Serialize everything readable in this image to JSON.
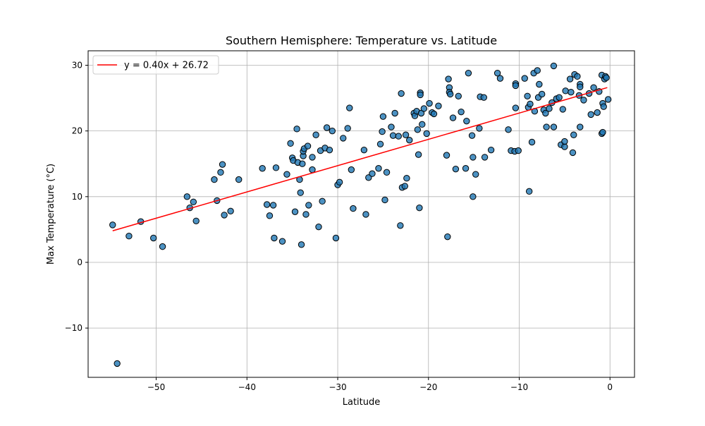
{
  "chart_data": {
    "type": "scatter",
    "title": "Southern Hemisphere: Temperature vs. Latitude",
    "xlabel": "Latitude",
    "ylabel": "Max Temperature (°C)",
    "xlim": [
      -57.5,
      2.7
    ],
    "ylim": [
      -17.5,
      32.2
    ],
    "xticks": [
      -50,
      -40,
      -30,
      -20,
      -10,
      0
    ],
    "yticks": [
      -10,
      0,
      10,
      20,
      30
    ],
    "xtick_labels": [
      "−50",
      "−40",
      "−30",
      "−20",
      "−10",
      "0"
    ],
    "ytick_labels": [
      "−10",
      "0",
      "10",
      "20",
      "30"
    ],
    "grid": true,
    "legend": {
      "position": "top-left",
      "entries": [
        "y = 0.40x + 26.72"
      ]
    },
    "colors": {
      "points": "#1f77b4",
      "point_edge": "#000000",
      "regression": "#ff0000"
    },
    "regression": {
      "slope": 0.4,
      "intercept": 26.72,
      "x_range": [
        -54.8,
        -0.3
      ]
    },
    "series": [
      {
        "points": [
          [
            -54.8,
            5.7
          ],
          [
            -54.3,
            -15.4
          ],
          [
            -53.0,
            4.0
          ],
          [
            -51.7,
            6.2
          ],
          [
            -50.3,
            3.7
          ],
          [
            -49.3,
            2.4
          ],
          [
            -46.6,
            10.0
          ],
          [
            -46.3,
            8.3
          ],
          [
            -45.9,
            9.2
          ],
          [
            -45.6,
            6.3
          ],
          [
            -43.6,
            12.6
          ],
          [
            -43.3,
            9.4
          ],
          [
            -42.9,
            13.7
          ],
          [
            -42.7,
            14.9
          ],
          [
            -42.5,
            7.2
          ],
          [
            -41.8,
            7.8
          ],
          [
            -40.9,
            12.6
          ],
          [
            -38.3,
            14.3
          ],
          [
            -37.8,
            8.8
          ],
          [
            -37.5,
            7.1
          ],
          [
            -37.1,
            8.7
          ],
          [
            -37.0,
            3.7
          ],
          [
            -36.8,
            14.4
          ],
          [
            -36.1,
            3.2
          ],
          [
            -35.6,
            13.4
          ],
          [
            -35.2,
            18.1
          ],
          [
            -35.0,
            15.9
          ],
          [
            -34.9,
            15.5
          ],
          [
            -34.7,
            7.7
          ],
          [
            -34.5,
            20.3
          ],
          [
            -34.4,
            15.2
          ],
          [
            -34.2,
            12.6
          ],
          [
            -34.1,
            10.6
          ],
          [
            -34.0,
            2.7
          ],
          [
            -33.9,
            15.0
          ],
          [
            -33.8,
            16.2
          ],
          [
            -33.8,
            16.9
          ],
          [
            -33.7,
            17.3
          ],
          [
            -33.5,
            7.3
          ],
          [
            -33.3,
            17.7
          ],
          [
            -33.2,
            8.7
          ],
          [
            -32.8,
            16.0
          ],
          [
            -32.8,
            14.1
          ],
          [
            -32.4,
            19.4
          ],
          [
            -32.1,
            5.4
          ],
          [
            -31.9,
            17.0
          ],
          [
            -31.7,
            9.3
          ],
          [
            -31.4,
            17.4
          ],
          [
            -31.2,
            20.5
          ],
          [
            -30.9,
            17.1
          ],
          [
            -30.6,
            20.0
          ],
          [
            -30.2,
            3.7
          ],
          [
            -30.0,
            11.8
          ],
          [
            -29.8,
            12.2
          ],
          [
            -29.4,
            18.9
          ],
          [
            -28.9,
            20.4
          ],
          [
            -28.7,
            23.5
          ],
          [
            -28.5,
            14.1
          ],
          [
            -28.3,
            8.2
          ],
          [
            -27.1,
            17.1
          ],
          [
            -26.9,
            7.3
          ],
          [
            -26.6,
            12.9
          ],
          [
            -26.2,
            13.5
          ],
          [
            -25.5,
            14.3
          ],
          [
            -25.3,
            18.0
          ],
          [
            -25.1,
            19.9
          ],
          [
            -25.0,
            22.2
          ],
          [
            -24.8,
            9.5
          ],
          [
            -24.6,
            13.7
          ],
          [
            -24.1,
            20.6
          ],
          [
            -23.9,
            19.3
          ],
          [
            -23.7,
            22.7
          ],
          [
            -23.3,
            19.2
          ],
          [
            -23.1,
            5.6
          ],
          [
            -23.0,
            25.7
          ],
          [
            -22.9,
            11.4
          ],
          [
            -22.6,
            11.6
          ],
          [
            -22.5,
            19.4
          ],
          [
            -22.4,
            12.8
          ],
          [
            -22.1,
            18.6
          ],
          [
            -21.6,
            22.7
          ],
          [
            -21.5,
            22.3
          ],
          [
            -21.3,
            23.0
          ],
          [
            -21.2,
            20.2
          ],
          [
            -21.1,
            16.4
          ],
          [
            -21.0,
            8.3
          ],
          [
            -20.9,
            25.8
          ],
          [
            -20.9,
            25.5
          ],
          [
            -20.8,
            22.7
          ],
          [
            -20.7,
            21.0
          ],
          [
            -20.5,
            23.4
          ],
          [
            -20.2,
            19.6
          ],
          [
            -19.9,
            24.2
          ],
          [
            -19.6,
            22.8
          ],
          [
            -19.4,
            22.6
          ],
          [
            -18.9,
            23.8
          ],
          [
            -17.9,
            3.9
          ],
          [
            -18.0,
            16.3
          ],
          [
            -17.8,
            27.9
          ],
          [
            -17.7,
            26.6
          ],
          [
            -17.7,
            25.9
          ],
          [
            -17.6,
            25.6
          ],
          [
            -17.3,
            22.0
          ],
          [
            -17.0,
            14.2
          ],
          [
            -16.7,
            25.3
          ],
          [
            -16.4,
            22.9
          ],
          [
            -15.9,
            14.3
          ],
          [
            -15.8,
            21.5
          ],
          [
            -15.6,
            28.8
          ],
          [
            -15.2,
            19.3
          ],
          [
            -15.1,
            16.0
          ],
          [
            -15.1,
            10.0
          ],
          [
            -14.8,
            13.4
          ],
          [
            -14.4,
            20.4
          ],
          [
            -14.3,
            25.2
          ],
          [
            -13.9,
            25.1
          ],
          [
            -13.8,
            16.0
          ],
          [
            -13.1,
            17.1
          ],
          [
            -12.4,
            28.8
          ],
          [
            -12.1,
            28.0
          ],
          [
            -11.2,
            20.2
          ],
          [
            -10.9,
            17.0
          ],
          [
            -10.5,
            16.9
          ],
          [
            -10.4,
            27.2
          ],
          [
            -10.4,
            26.9
          ],
          [
            -10.4,
            23.5
          ],
          [
            -10.1,
            17.0
          ],
          [
            -9.4,
            28.0
          ],
          [
            -9.1,
            25.3
          ],
          [
            -9.0,
            23.6
          ],
          [
            -8.9,
            10.8
          ],
          [
            -8.8,
            24.1
          ],
          [
            -8.6,
            18.3
          ],
          [
            -8.4,
            28.8
          ],
          [
            -8.3,
            23.0
          ],
          [
            -8.0,
            29.2
          ],
          [
            -7.9,
            25.1
          ],
          [
            -7.8,
            27.1
          ],
          [
            -7.5,
            25.6
          ],
          [
            -7.3,
            23.2
          ],
          [
            -7.1,
            22.7
          ],
          [
            -7.0,
            20.6
          ],
          [
            -6.7,
            23.4
          ],
          [
            -6.4,
            24.3
          ],
          [
            -6.2,
            20.6
          ],
          [
            -6.2,
            29.9
          ],
          [
            -5.9,
            24.9
          ],
          [
            -5.6,
            25.1
          ],
          [
            -5.4,
            17.9
          ],
          [
            -5.2,
            23.3
          ],
          [
            -5.0,
            17.6
          ],
          [
            -5.0,
            18.4
          ],
          [
            -4.9,
            26.1
          ],
          [
            -4.4,
            27.9
          ],
          [
            -4.3,
            25.9
          ],
          [
            -4.1,
            16.7
          ],
          [
            -4.0,
            19.4
          ],
          [
            -3.9,
            28.6
          ],
          [
            -3.6,
            28.3
          ],
          [
            -3.4,
            25.4
          ],
          [
            -3.3,
            27.1
          ],
          [
            -3.3,
            26.7
          ],
          [
            -3.3,
            20.6
          ],
          [
            -2.9,
            24.7
          ],
          [
            -2.3,
            25.7
          ],
          [
            -2.1,
            22.5
          ],
          [
            -1.8,
            26.6
          ],
          [
            -1.4,
            22.8
          ],
          [
            -1.2,
            26.0
          ],
          [
            -0.9,
            28.5
          ],
          [
            -0.9,
            19.6
          ],
          [
            -0.8,
            19.8
          ],
          [
            -0.8,
            24.2
          ],
          [
            -0.7,
            23.7
          ],
          [
            -0.6,
            27.9
          ],
          [
            -0.5,
            28.3
          ],
          [
            -0.4,
            28.1
          ],
          [
            -0.2,
            24.8
          ]
        ]
      }
    ]
  }
}
